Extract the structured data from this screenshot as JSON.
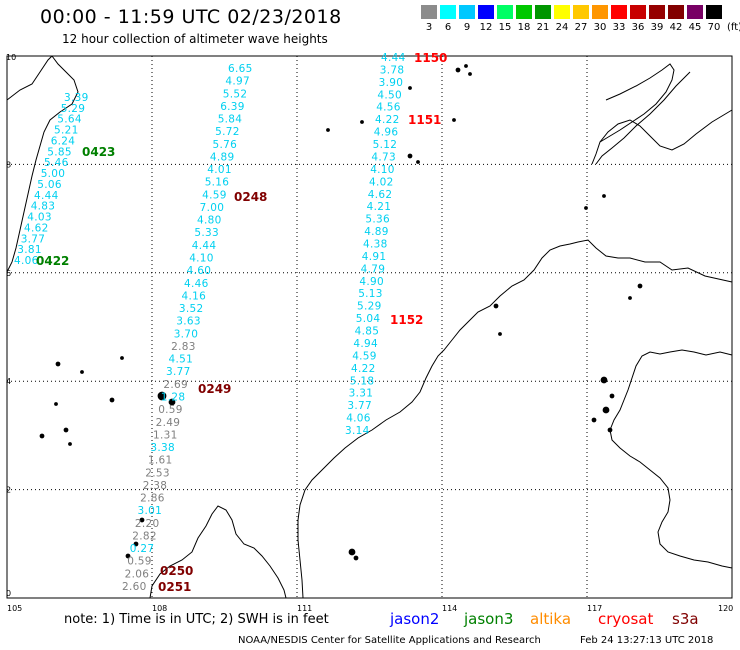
{
  "header": {
    "title": "00:00 - 11:59 UTC 02/23/2018",
    "subtitle": "12 hour collection of altimeter wave heights"
  },
  "color_scale": {
    "labels": [
      "3",
      "6",
      "9",
      "12",
      "15",
      "18",
      "21",
      "24",
      "27",
      "30",
      "33",
      "36",
      "39",
      "42",
      "45",
      "70"
    ],
    "colors": [
      "#8c8c8c",
      "#00ffff",
      "#00c8ff",
      "#0000ff",
      "#00ff64",
      "#00c800",
      "#009600",
      "#ffff00",
      "#ffc800",
      "#ff9600",
      "#ff0000",
      "#c80000",
      "#960000",
      "#820000",
      "#780064",
      "#000000"
    ],
    "unit": "(ft)"
  },
  "axes": {
    "x_ticks": [
      "105",
      "108",
      "111",
      "114",
      "117",
      "120"
    ],
    "y_ticks": [
      "10",
      "8",
      "6",
      "4",
      "2",
      "0"
    ]
  },
  "passes": [
    {
      "id": "0422",
      "color": "#008000"
    },
    {
      "id": "0423",
      "color": "#008000"
    },
    {
      "id": "0248",
      "color": "#800000"
    },
    {
      "id": "0249",
      "color": "#800000"
    },
    {
      "id": "0250",
      "color": "#800000"
    },
    {
      "id": "0251",
      "color": "#800000"
    },
    {
      "id": "1150",
      "color": "#ff0000"
    },
    {
      "id": "1151",
      "color": "#ff0000"
    },
    {
      "id": "1152",
      "color": "#ff0000"
    }
  ],
  "tracks": {
    "track1": [
      "3.39",
      "5.29",
      "5.64",
      "5.21",
      "6.24",
      "5.85",
      "5.46",
      "5.00",
      "5.06",
      "4.44",
      "4.83",
      "4.03",
      "4.62",
      "3.77",
      "3.81",
      "4.06"
    ],
    "track2": [
      "6.65",
      "4.97",
      "5.52",
      "6.39",
      "5.84",
      "5.72",
      "5.76",
      "4.89",
      "4.01",
      "5.16",
      "4.59",
      "7.00",
      "4.80",
      "5.33",
      "4.44",
      "4.10",
      "4.60",
      "4.46",
      "4.16",
      "3.52",
      "3.63",
      "3.70",
      "2.83",
      "4.51",
      "3.77",
      "2.69",
      "1.28",
      "0.59",
      "2.49",
      "1.31",
      "3.38",
      "1.61",
      "2.53",
      "2.38",
      "2.86",
      "3.01",
      "2.20",
      "2.82",
      "0.27",
      "0.59",
      "2.06",
      "2.60"
    ],
    "track2_colors": [
      "c",
      "c",
      "c",
      "c",
      "c",
      "c",
      "c",
      "c",
      "c",
      "c",
      "c",
      "c",
      "c",
      "c",
      "c",
      "c",
      "c",
      "c",
      "c",
      "c",
      "c",
      "c",
      "g",
      "c",
      "c",
      "g",
      "c",
      "g",
      "g",
      "g",
      "c",
      "g",
      "g",
      "g",
      "g",
      "c",
      "g",
      "g",
      "c",
      "g",
      "g",
      "g"
    ],
    "track3": [
      "4.44",
      "3.78",
      "3.90",
      "4.50",
      "4.56",
      "4.22",
      "4.96",
      "5.12",
      "4.73",
      "4.10",
      "4.02",
      "4.62",
      "4.21",
      "5.36",
      "4.89",
      "4.38",
      "4.91",
      "4.79",
      "4.90",
      "5.13",
      "5.29",
      "5.04",
      "4.85",
      "4.94",
      "4.59",
      "4.22",
      "5.18",
      "3.31",
      "3.77",
      "4.06",
      "3.14"
    ]
  },
  "legend": {
    "note": "note: 1) Time is in UTC; 2) SWH is in feet",
    "satellites": [
      {
        "name": "jason2",
        "color": "#0000ff"
      },
      {
        "name": "jason3",
        "color": "#008000"
      },
      {
        "name": "altika",
        "color": "#ff8c00"
      },
      {
        "name": "cryosat",
        "color": "#ff0000"
      },
      {
        "name": "s3a",
        "color": "#800000"
      }
    ]
  },
  "footer": {
    "credit": "NOAA/NESDIS Center for Satellite Applications and Research",
    "timestamp": "Feb 24 13:27:13 UTC 2018"
  }
}
